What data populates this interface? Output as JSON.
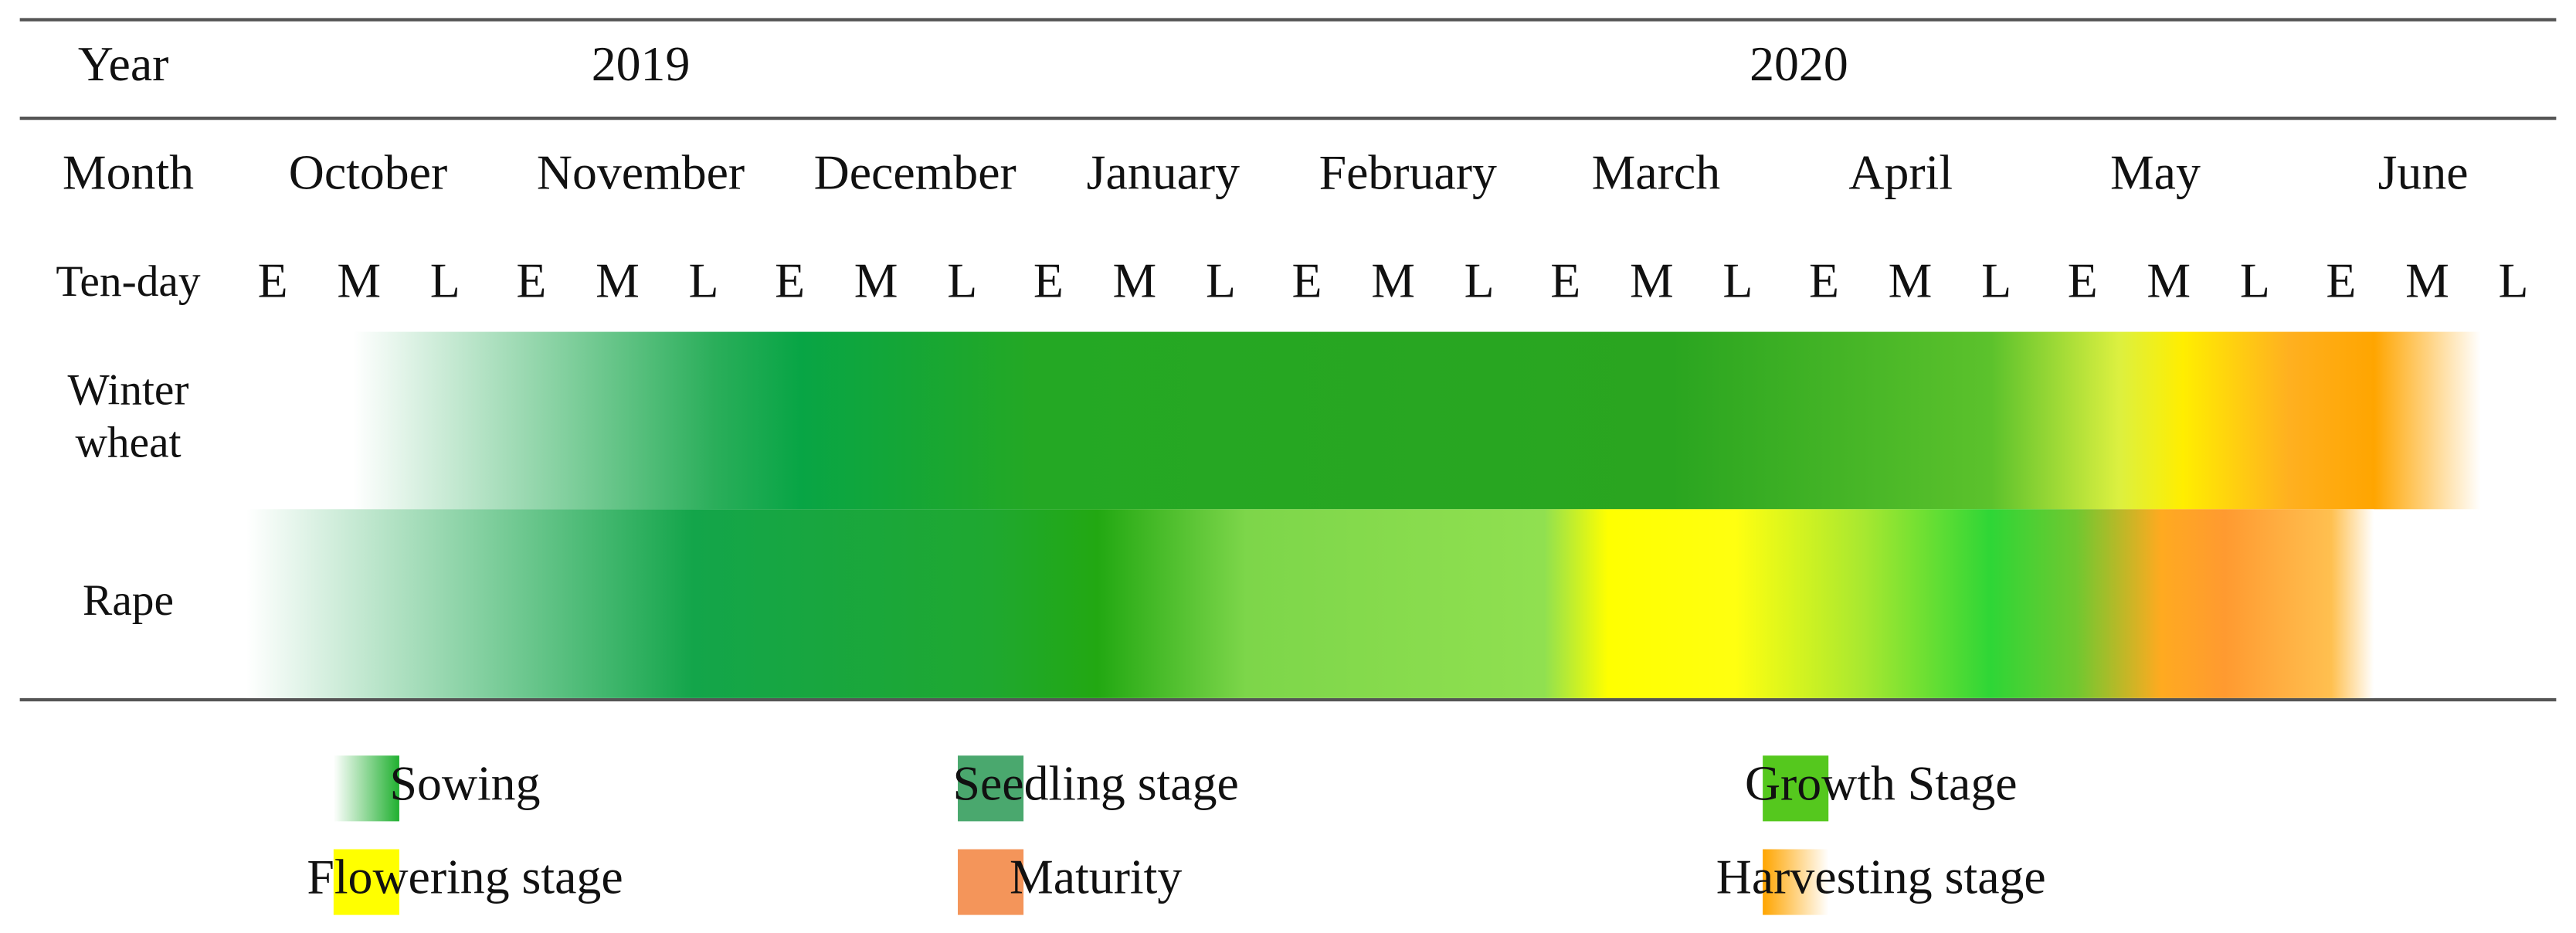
{
  "header": {
    "year_label": "Year",
    "years": [
      "2019",
      "2020"
    ]
  },
  "month_label": "Month",
  "months": [
    "October",
    "November",
    "December",
    "January",
    "February",
    "March",
    "April",
    "May",
    "June"
  ],
  "tenday_label": "Ten-day",
  "tendays": [
    "E",
    "M",
    "L",
    "E",
    "M",
    "L",
    "E",
    "M",
    "L",
    "E",
    "M",
    "L",
    "E",
    "M",
    "L",
    "E",
    "M",
    "L",
    "E",
    "M",
    "L",
    "E",
    "M",
    "L",
    "E",
    "M",
    "L"
  ],
  "crops": [
    {
      "label_lines": [
        "Winter",
        "wheat"
      ]
    },
    {
      "label_lines": [
        "Rape"
      ]
    }
  ],
  "legend": [
    {
      "label": "Sowing"
    },
    {
      "label": "Seedling stage"
    },
    {
      "label": "Growth Stage"
    },
    {
      "label": "Flowering stage"
    },
    {
      "label": "Maturity"
    },
    {
      "label": "Harvesting stage"
    }
  ]
}
